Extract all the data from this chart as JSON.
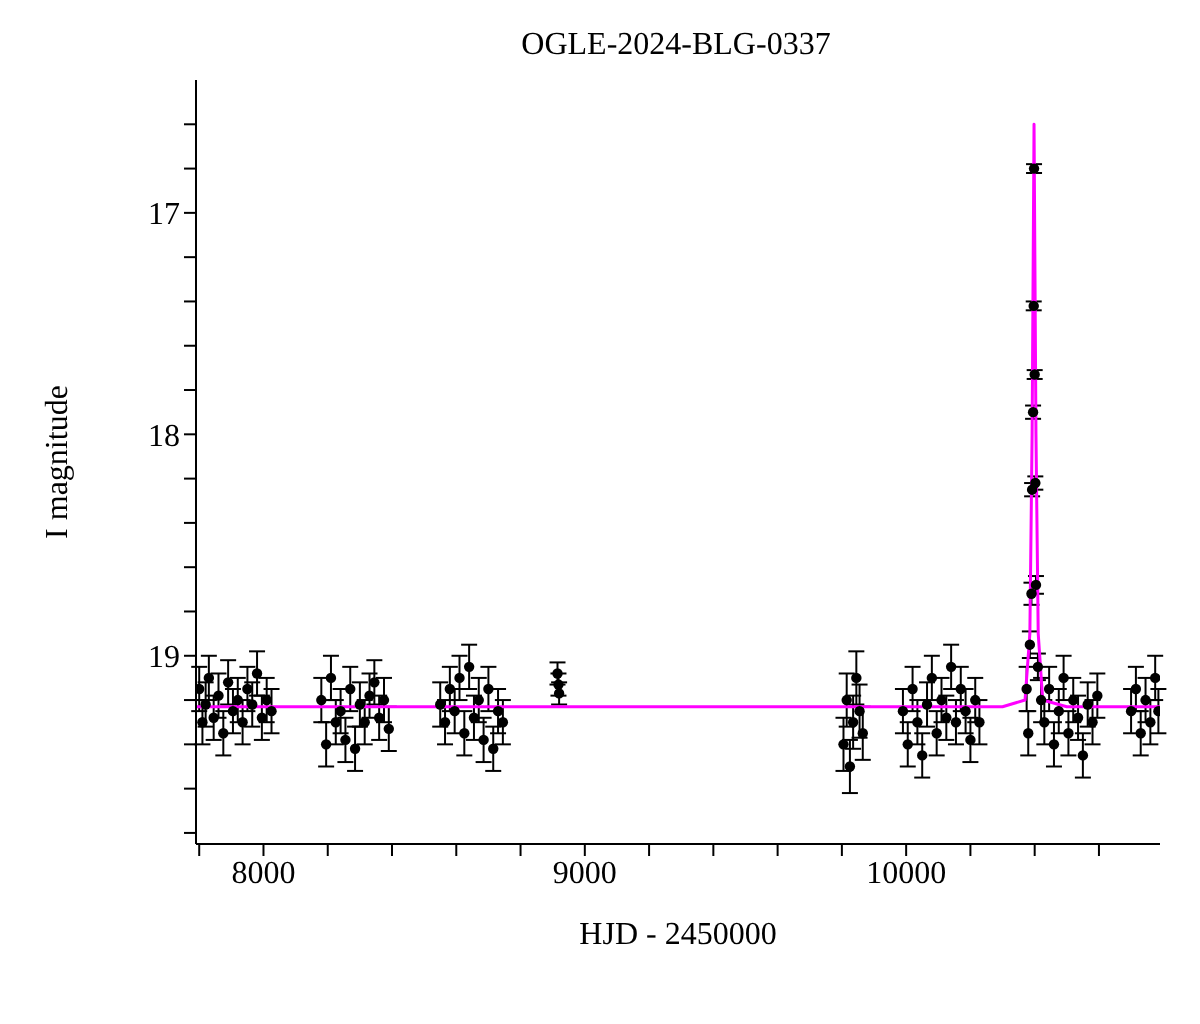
{
  "chart_data": {
    "type": "scatter",
    "title": "OGLE-2024-BLG-0337",
    "xlabel": "HJD - 2450000",
    "ylabel": "I magnitude",
    "xlim": [
      7790,
      10790
    ],
    "ylim": [
      19.85,
      16.4
    ],
    "xticks": [
      {
        "value": 7800,
        "label": null
      },
      8000,
      {
        "value": 8200,
        "label": null
      },
      {
        "value": 8400,
        "label": null
      },
      {
        "value": 8600,
        "label": null
      },
      {
        "value": 8800,
        "label": null
      },
      9000,
      {
        "value": 9200,
        "label": null
      },
      {
        "value": 9400,
        "label": null
      },
      {
        "value": 9600,
        "label": null
      },
      {
        "value": 9800,
        "label": null
      },
      10000,
      {
        "value": 10200,
        "label": null
      },
      {
        "value": 10400,
        "label": null
      },
      {
        "value": 10600,
        "label": null
      }
    ],
    "yticks": [
      {
        "value": 16.6,
        "label": null
      },
      {
        "value": 16.8,
        "label": null
      },
      17,
      {
        "value": 17.2,
        "label": null
      },
      {
        "value": 17.4,
        "label": null
      },
      {
        "value": 17.6,
        "label": null
      },
      {
        "value": 17.8,
        "label": null
      },
      18,
      {
        "value": 18.2,
        "label": null
      },
      {
        "value": 18.4,
        "label": null
      },
      {
        "value": 18.6,
        "label": null
      },
      {
        "value": 18.8,
        "label": null
      },
      19,
      {
        "value": 19.2,
        "label": null
      },
      {
        "value": 19.4,
        "label": null
      },
      {
        "value": 19.6,
        "label": null
      },
      {
        "value": 19.8,
        "label": null
      }
    ],
    "grid": false,
    "marker": "circle",
    "series": [
      {
        "color": "#000000",
        "x": [
          7800,
          7810,
          7820,
          7830,
          7845,
          7860,
          7875,
          7890,
          7905,
          7920,
          7935,
          7950,
          7965,
          7980,
          7995,
          8010,
          8025,
          8180,
          8195,
          8210,
          8225,
          8240,
          8255,
          8270,
          8285,
          8300,
          8315,
          8330,
          8345,
          8360,
          8375,
          8390,
          8550,
          8565,
          8580,
          8595,
          8610,
          8625,
          8640,
          8655,
          8670,
          8685,
          8700,
          8715,
          8730,
          8745,
          8915,
          8918,
          8920,
          9805,
          9815,
          9825,
          9835,
          9845,
          9855,
          9865,
          9990,
          10005,
          10020,
          10035,
          10050,
          10065,
          10080,
          10095,
          10110,
          10125,
          10140,
          10155,
          10170,
          10185,
          10200,
          10215,
          10228,
          10375,
          10380,
          10385,
          10390,
          10392,
          10395,
          10397,
          10398,
          10400,
          10402,
          10404,
          10410,
          10420,
          10430,
          10445,
          10460,
          10475,
          10490,
          10505,
          10520,
          10535,
          10550,
          10565,
          10580,
          10595,
          10700,
          10715,
          10730,
          10745,
          10760,
          10775,
          10785
        ],
        "values": [
          19.15,
          19.3,
          19.22,
          19.1,
          19.28,
          19.18,
          19.35,
          19.12,
          19.25,
          19.2,
          19.3,
          19.15,
          19.22,
          19.08,
          19.28,
          19.2,
          19.25,
          19.2,
          19.4,
          19.1,
          19.3,
          19.25,
          19.38,
          19.15,
          19.42,
          19.22,
          19.3,
          19.18,
          19.12,
          19.28,
          19.2,
          19.33,
          19.22,
          19.3,
          19.15,
          19.25,
          19.1,
          19.35,
          19.05,
          19.28,
          19.2,
          19.38,
          19.15,
          19.42,
          19.25,
          19.3,
          19.08,
          19.13,
          19.17,
          19.4,
          19.2,
          19.5,
          19.3,
          19.1,
          19.25,
          19.35,
          19.25,
          19.4,
          19.15,
          19.3,
          19.45,
          19.22,
          19.1,
          19.35,
          19.2,
          19.28,
          19.05,
          19.3,
          19.15,
          19.25,
          19.38,
          19.2,
          19.3,
          19.15,
          19.35,
          18.95,
          18.72,
          18.25,
          17.9,
          17.42,
          16.8,
          17.73,
          18.22,
          18.68,
          19.05,
          19.2,
          19.3,
          19.15,
          19.4,
          19.25,
          19.1,
          19.35,
          19.2,
          19.28,
          19.45,
          19.22,
          19.3,
          19.18,
          19.25,
          19.15,
          19.35,
          19.2,
          19.3,
          19.1,
          19.25
        ],
        "errors": [
          0.1,
          0.1,
          0.1,
          0.1,
          0.1,
          0.1,
          0.1,
          0.1,
          0.1,
          0.1,
          0.1,
          0.1,
          0.1,
          0.1,
          0.1,
          0.1,
          0.1,
          0.1,
          0.1,
          0.1,
          0.1,
          0.1,
          0.1,
          0.1,
          0.1,
          0.1,
          0.1,
          0.1,
          0.1,
          0.1,
          0.1,
          0.1,
          0.1,
          0.1,
          0.1,
          0.1,
          0.1,
          0.1,
          0.1,
          0.1,
          0.1,
          0.1,
          0.1,
          0.1,
          0.1,
          0.1,
          0.05,
          0.05,
          0.05,
          0.12,
          0.12,
          0.12,
          0.12,
          0.12,
          0.12,
          0.12,
          0.1,
          0.1,
          0.1,
          0.1,
          0.1,
          0.1,
          0.1,
          0.1,
          0.1,
          0.1,
          0.1,
          0.1,
          0.1,
          0.1,
          0.1,
          0.1,
          0.1,
          0.1,
          0.1,
          0.06,
          0.05,
          0.03,
          0.03,
          0.02,
          0.02,
          0.02,
          0.03,
          0.04,
          0.06,
          0.1,
          0.1,
          0.1,
          0.1,
          0.1,
          0.1,
          0.1,
          0.1,
          0.1,
          0.1,
          0.1,
          0.1,
          0.1,
          0.1,
          0.1,
          0.1,
          0.1,
          0.1,
          0.1,
          0.1
        ]
      },
      {
        "type": "line",
        "color": "#ff00ff",
        "marker": "none",
        "x": [
          7790,
          10300,
          10370,
          10385,
          10392,
          10398,
          10404,
          10411,
          10425,
          10500,
          10790
        ],
        "values": [
          19.23,
          19.23,
          19.2,
          18.9,
          18.0,
          16.6,
          18.0,
          18.9,
          19.2,
          19.23,
          19.23
        ]
      }
    ]
  }
}
